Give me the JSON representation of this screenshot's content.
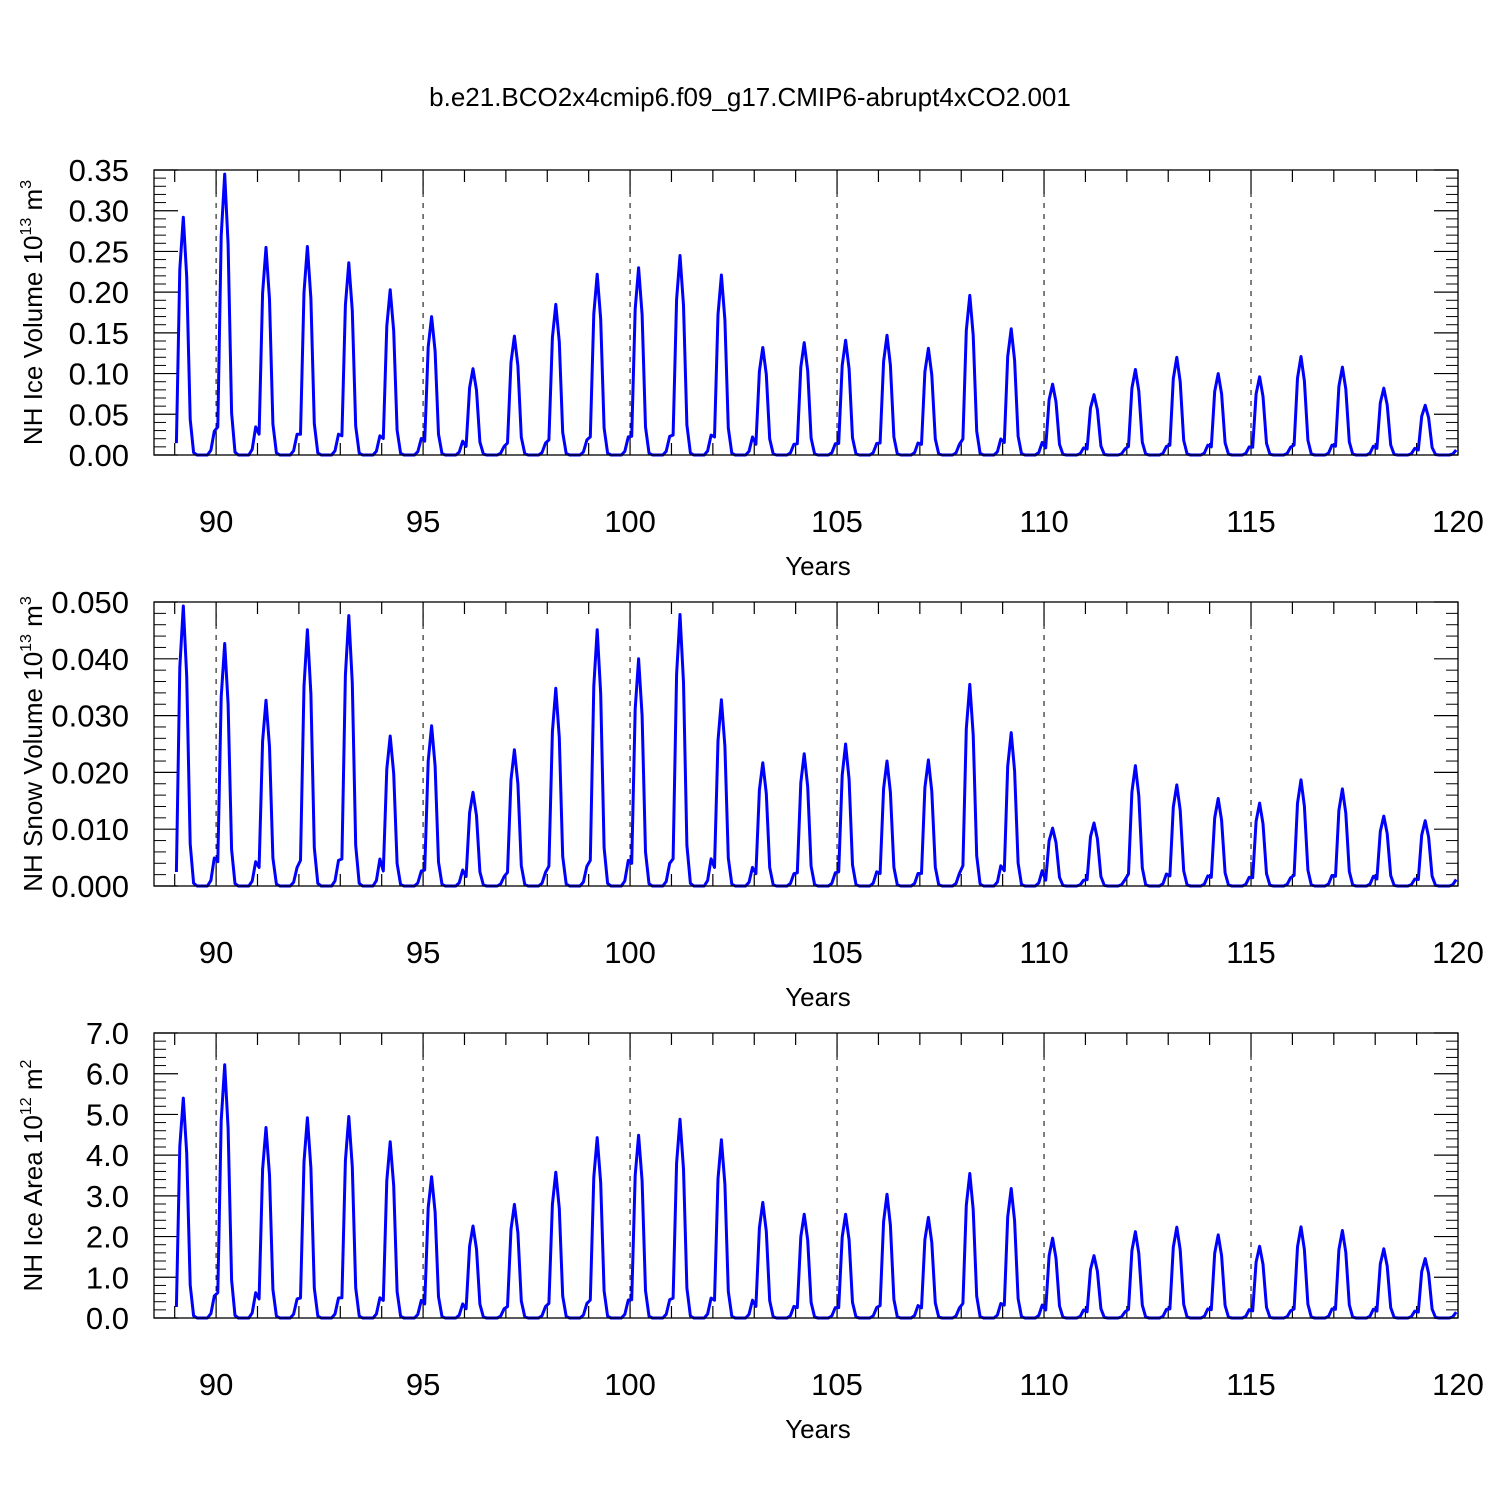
{
  "title": "b.e21.BCO2x4cmip6.f09_g17.CMIP6-abrupt4xCO2.001",
  "line_color": "#0000ff",
  "chart_data": [
    {
      "type": "line",
      "xlabel": "Years",
      "ylabel": {
        "text": "NH Ice Volume 10",
        "exp": "13",
        "unit": " m",
        "unit_exp": "3"
      },
      "xlim": [
        88.5,
        120
      ],
      "ylim": [
        0,
        0.35
      ],
      "x_ticks": [
        "90",
        "95",
        "100",
        "105",
        "110",
        "115",
        "120"
      ],
      "y_ticks": [
        "0.00",
        "0.05",
        "0.10",
        "0.15",
        "0.20",
        "0.25",
        "0.30",
        "0.35"
      ],
      "grid": "dashed vertical lines at major x ticks",
      "x_start": 89.04,
      "months_per_year": 12,
      "annual_peaks": [
        0.292,
        0.345,
        0.255,
        0.256,
        0.236,
        0.203,
        0.17,
        0.106,
        0.146,
        0.185,
        0.222,
        0.23,
        0.245,
        0.221,
        0.132,
        0.138,
        0.141,
        0.147,
        0.131,
        0.196,
        0.155,
        0.087,
        0.074,
        0.105,
        0.12,
        0.1,
        0.096,
        0.121,
        0.108,
        0.082,
        0.061
      ]
    },
    {
      "type": "line",
      "xlabel": "Years",
      "ylabel": {
        "text": "NH Snow Volume 10",
        "exp": "13",
        "unit": " m",
        "unit_exp": "3"
      },
      "xlim": [
        88.5,
        120
      ],
      "ylim": [
        0,
        0.05
      ],
      "x_ticks": [
        "90",
        "95",
        "100",
        "105",
        "110",
        "115",
        "120"
      ],
      "y_ticks": [
        "0.000",
        "0.010",
        "0.020",
        "0.030",
        "0.040",
        "0.050"
      ],
      "grid": "dashed vertical lines at major x ticks",
      "x_start": 89.04,
      "months_per_year": 12,
      "annual_peaks": [
        0.0493,
        0.0427,
        0.0327,
        0.0451,
        0.0476,
        0.0264,
        0.0282,
        0.0165,
        0.024,
        0.0348,
        0.0451,
        0.04,
        0.0478,
        0.0328,
        0.0217,
        0.0233,
        0.025,
        0.022,
        0.0222,
        0.0355,
        0.027,
        0.0102,
        0.0111,
        0.0212,
        0.0178,
        0.0154,
        0.0146,
        0.0187,
        0.0171,
        0.0123,
        0.0115
      ]
    },
    {
      "type": "line",
      "xlabel": "Years",
      "ylabel": {
        "text": "NH Ice Area 10",
        "exp": "12",
        "unit": " m",
        "unit_exp": "2"
      },
      "xlim": [
        88.5,
        120
      ],
      "ylim": [
        0,
        7
      ],
      "x_ticks": [
        "90",
        "95",
        "100",
        "105",
        "110",
        "115",
        "120"
      ],
      "y_ticks": [
        "0.0",
        "1.0",
        "2.0",
        "3.0",
        "4.0",
        "5.0",
        "6.0",
        "7.0"
      ],
      "grid": "dashed vertical lines at major x ticks",
      "x_start": 89.04,
      "months_per_year": 12,
      "annual_peaks": [
        5.4,
        6.22,
        4.68,
        4.92,
        4.95,
        4.33,
        3.47,
        2.26,
        2.79,
        3.58,
        4.43,
        4.49,
        4.88,
        4.38,
        2.84,
        2.55,
        2.55,
        3.04,
        2.47,
        3.55,
        3.18,
        1.96,
        1.53,
        2.12,
        2.23,
        2.04,
        1.76,
        2.24,
        2.15,
        1.7,
        1.46
      ]
    }
  ]
}
